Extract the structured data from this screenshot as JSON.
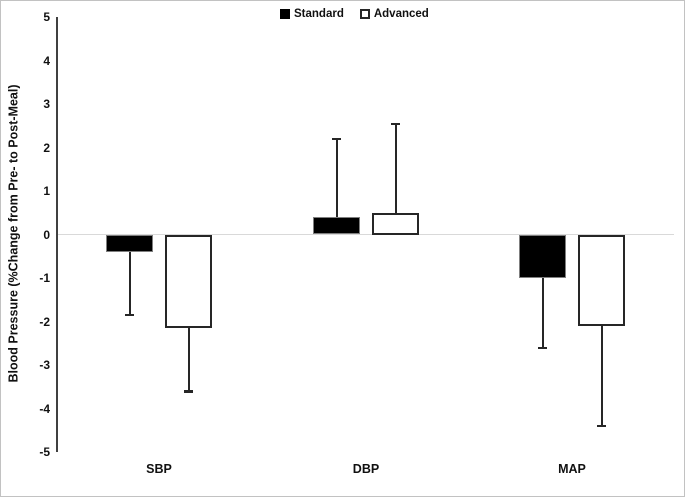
{
  "chart_data": {
    "type": "bar",
    "title": "",
    "xlabel": "",
    "ylabel": "Blood Pressure (%Change from Pre- to Post-Meal)",
    "categories": [
      "SBP",
      "DBP",
      "MAP"
    ],
    "ylim": [
      -5,
      5
    ],
    "yticks": [
      5,
      4,
      3,
      2,
      1,
      0,
      -1,
      -2,
      -3,
      -4,
      -5
    ],
    "grid": "zero-line-only",
    "legend_position": "top-center",
    "error_bar_style": "one-sided, extending in the direction of the bar value, with end caps",
    "series": [
      {
        "name": "Standard",
        "fill": "#000000",
        "values": [
          -0.4,
          0.4,
          -1.0
        ],
        "error_to": [
          -1.85,
          2.2,
          -2.6
        ]
      },
      {
        "name": "Advanced",
        "fill": "#ffffff",
        "values": [
          -2.15,
          0.5,
          -2.1
        ],
        "error_to": [
          -3.6,
          2.55,
          -4.4
        ]
      }
    ]
  },
  "colors": {
    "bar_standard": "#000000",
    "bar_advanced_fill": "#ffffff",
    "bar_border": "#262626",
    "axis_line": "#404040",
    "zero_gridline": "#d9d9d9",
    "text": "#111111",
    "frame_border": "#c2c2c2"
  }
}
